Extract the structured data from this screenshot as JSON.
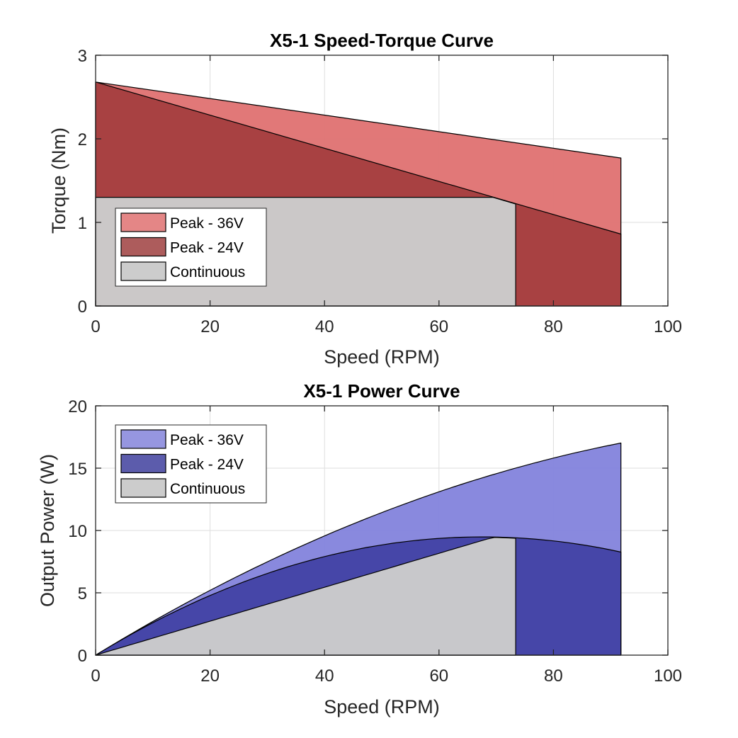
{
  "chart_data": [
    {
      "type": "area",
      "title": "X5-1 Speed-Torque Curve",
      "xlabel": "Speed (RPM)",
      "ylabel": "Torque (Nm)",
      "xlim": [
        0,
        100
      ],
      "ylim": [
        0,
        3
      ],
      "xticks": [
        "0",
        "20",
        "40",
        "60",
        "80",
        "100"
      ],
      "yticks": [
        "0",
        "1",
        "2",
        "3"
      ],
      "grid": true,
      "legend_position": "bottom-left",
      "series": [
        {
          "name": "Peak - 36V",
          "color": "#e07474",
          "legend_color": "#e48686",
          "x": [
            0,
            91.8
          ],
          "y": [
            2.68,
            1.77
          ]
        },
        {
          "name": "Peak - 24V",
          "color": "#a63f40",
          "legend_color": "#ad5c5c",
          "x": [
            0,
            91.8
          ],
          "y": [
            2.68,
            0.86
          ]
        },
        {
          "name": "Continuous",
          "color": "#cccccc",
          "legend_color": "#cccccc",
          "x": [
            0,
            69.4,
            73.4
          ],
          "y": [
            1.3,
            1.3,
            1.22
          ]
        }
      ]
    },
    {
      "type": "area",
      "title": "X5-1 Power Curve",
      "xlabel": "Speed (RPM)",
      "ylabel": "Output Power (W)",
      "xlim": [
        0,
        100
      ],
      "ylim": [
        0,
        20
      ],
      "xticks": [
        "0",
        "20",
        "40",
        "60",
        "80",
        "100"
      ],
      "yticks": [
        "0",
        "5",
        "10",
        "15",
        "20"
      ],
      "grid": true,
      "legend_position": "top-left",
      "series": [
        {
          "name": "Peak - 36V",
          "color": "#8585dd",
          "legend_color": "#9696e0",
          "x": [
            0,
            20,
            40,
            60,
            80,
            91.8
          ],
          "y": [
            0,
            5.2,
            9.6,
            13.2,
            15.6,
            17.0
          ]
        },
        {
          "name": "Peak - 24V",
          "color": "#4444a6",
          "legend_color": "#5c5cac",
          "x": [
            0,
            20,
            40,
            60,
            80,
            91.8
          ],
          "y": [
            0,
            4.9,
            8.0,
            9.3,
            8.9,
            8.3
          ]
        },
        {
          "name": "Continuous",
          "color": "#cccccc",
          "legend_color": "#cccccc",
          "x": [
            0,
            20,
            40,
            60,
            69.4,
            73.4
          ],
          "y": [
            0,
            2.7,
            5.4,
            8.2,
            9.4,
            9.4
          ]
        }
      ]
    }
  ]
}
